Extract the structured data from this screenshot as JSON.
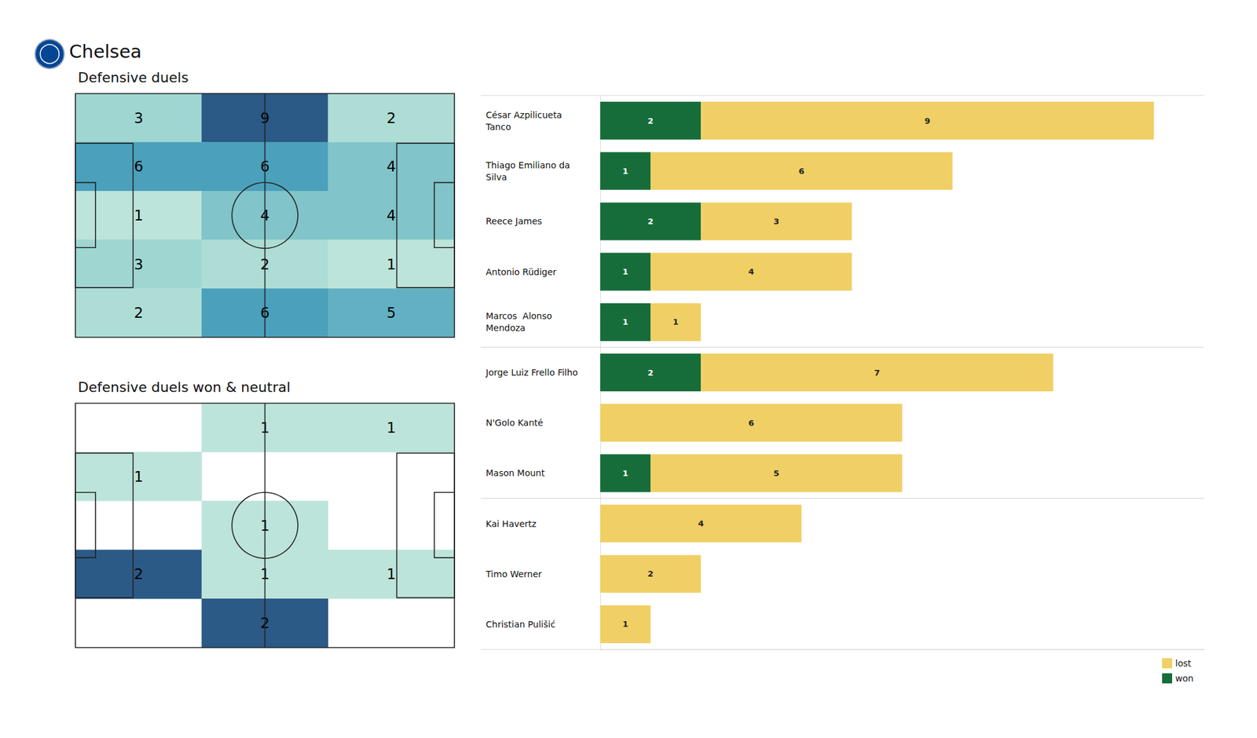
{
  "title": "Chelsea",
  "chart_data": [
    {
      "type": "heatmap",
      "title": "Defensive duels",
      "cells": [
        [
          3,
          9,
          2
        ],
        [
          6,
          6,
          4
        ],
        [
          1,
          4,
          4
        ],
        [
          3,
          2,
          1
        ],
        [
          2,
          6,
          5
        ]
      ],
      "data_labels": true,
      "tick_labels": false
    },
    {
      "type": "heatmap",
      "title": "Defensive duels won & neutral",
      "cells": [
        [
          null,
          1,
          1
        ],
        [
          1,
          null,
          null
        ],
        [
          null,
          1,
          null
        ],
        [
          2,
          1,
          1
        ],
        [
          null,
          2,
          null
        ]
      ],
      "data_labels": true,
      "tick_labels": false
    },
    {
      "type": "bar",
      "orientation": "horizontal",
      "stacked": true,
      "categories": [
        "César Azpilicueta Tanco",
        "Thiago Emiliano da Silva",
        "Reece James",
        "Antonio Rüdiger",
        "Marcos  Alonso Mendoza",
        "Jorge Luiz Frello Filho",
        "N'Golo Kanté",
        "Mason Mount",
        "Kai Havertz",
        "Timo Werner",
        "Christian Pulišić"
      ],
      "series": [
        {
          "name": "won",
          "color": "#176d3a",
          "values": [
            2,
            1,
            2,
            1,
            1,
            2,
            null,
            1,
            null,
            null,
            null
          ]
        },
        {
          "name": "lost",
          "color": "#f0cf65",
          "values": [
            9,
            6,
            3,
            4,
            1,
            7,
            6,
            5,
            4,
            2,
            1
          ]
        }
      ],
      "xlim": [
        0,
        12
      ],
      "data_labels": true,
      "tick_labels": "y",
      "legend": "lower right"
    }
  ]
}
